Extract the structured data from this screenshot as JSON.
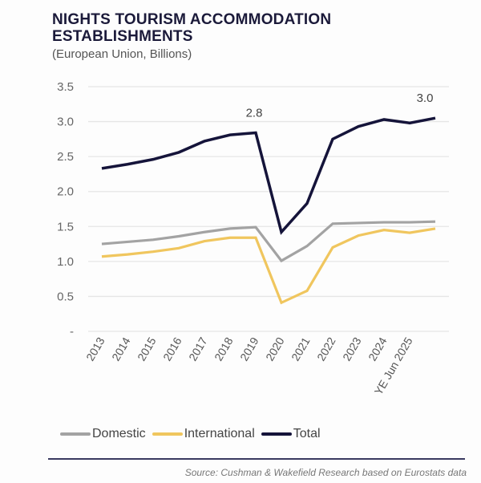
{
  "chart_data": {
    "type": "line",
    "title": "NIGHTS TOURISM ACCOMMODATION ESTABLISHMENTS",
    "subtitle": "(European Union, Billions)",
    "xlabel": "",
    "ylabel": "",
    "categories": [
      "2013",
      "2014",
      "2015",
      "2016",
      "2017",
      "2018",
      "2019",
      "2020",
      "2021",
      "2022",
      "2023",
      "2024",
      "YE Jun 2025",
      ""
    ],
    "ylim": [
      0,
      3.5
    ],
    "yticks": [
      0,
      0.5,
      1.0,
      1.5,
      2.0,
      2.5,
      3.0,
      3.5
    ],
    "ytick_labels": [
      "-",
      "0.5",
      "1.0",
      "1.5",
      "2.0",
      "2.5",
      "3.0",
      "3.5"
    ],
    "grid": true,
    "legend_position": "bottom",
    "series": [
      {
        "name": "Domestic",
        "color": "#a3a3a3",
        "values": [
          1.25,
          1.28,
          1.31,
          1.36,
          1.42,
          1.47,
          1.49,
          1.01,
          1.22,
          1.54,
          1.55,
          1.56,
          1.56,
          1.57
        ]
      },
      {
        "name": "International",
        "color": "#f0c65e",
        "values": [
          1.07,
          1.1,
          1.14,
          1.19,
          1.29,
          1.34,
          1.34,
          0.41,
          0.58,
          1.2,
          1.37,
          1.45,
          1.41,
          1.47
        ]
      },
      {
        "name": "Total",
        "color": "#15143a",
        "values": [
          2.33,
          2.39,
          2.46,
          2.56,
          2.72,
          2.81,
          2.84,
          1.42,
          1.83,
          2.75,
          2.93,
          3.03,
          2.98,
          3.05
        ]
      }
    ],
    "annotations": [
      {
        "series": "Total",
        "index": 6,
        "text": "2.8"
      },
      {
        "series": "Total",
        "index": 13,
        "text": "3.0"
      }
    ]
  },
  "source": "Source: Cushman & Wakefield Research based on Eurostats data"
}
